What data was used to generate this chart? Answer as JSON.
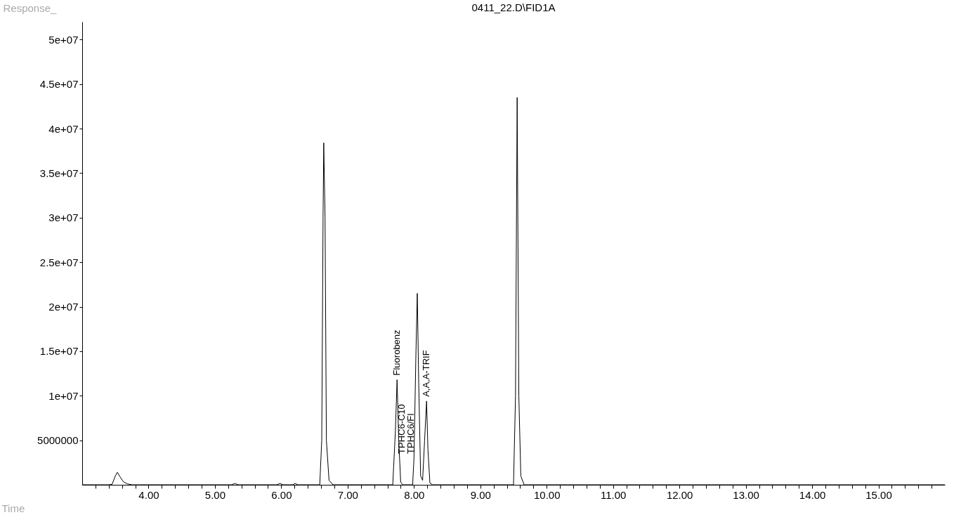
{
  "chart_data": {
    "type": "line",
    "title": "0411_22.D\\FID1A",
    "xlabel": "Time",
    "ylabel": "Response_",
    "x": [
      3.0,
      3.4,
      3.45,
      3.5,
      3.53,
      3.57,
      3.62,
      3.68,
      3.75,
      5.25,
      5.3,
      5.35,
      5.93,
      5.98,
      6.03,
      6.17,
      6.21,
      6.25,
      6.58,
      6.61,
      6.63,
      6.64,
      6.66,
      6.68,
      6.72,
      6.78,
      7.68,
      7.72,
      7.745,
      7.77,
      7.8,
      7.83,
      7.98,
      8.0,
      8.03,
      8.05,
      8.07,
      8.1,
      8.13,
      8.16,
      8.19,
      8.21,
      8.24,
      8.28,
      9.5,
      9.53,
      9.555,
      9.58,
      9.61,
      9.66,
      16.0
    ],
    "series": [
      {
        "color": "#000000",
        "values": [
          0,
          0,
          50000,
          1000000,
          1400000,
          900000,
          350000,
          100000,
          0,
          0,
          150000,
          0,
          0,
          150000,
          0,
          0,
          150000,
          0,
          0,
          5000000,
          30000000,
          38400000,
          30000000,
          5000000,
          500000,
          0,
          0,
          6000000,
          11800000,
          5000000,
          300000,
          0,
          0,
          3000000,
          15000000,
          21500000,
          12000000,
          1000000,
          500000,
          5000000,
          9400000,
          4000000,
          200000,
          0,
          0,
          10000000,
          43500000,
          10000000,
          1000000,
          0,
          0
        ]
      }
    ],
    "xlim": [
      3.0,
      16.0
    ],
    "ylim": [
      0,
      52000000
    ],
    "xticks": [
      {
        "value": 3.2,
        "label": null
      },
      {
        "value": 3.4,
        "label": null
      },
      {
        "value": 3.6,
        "label": null
      },
      {
        "value": 3.8,
        "label": null
      },
      {
        "value": 4,
        "label": "4.00"
      },
      {
        "value": 4.2,
        "label": null
      },
      {
        "value": 4.4,
        "label": null
      },
      {
        "value": 4.6,
        "label": null
      },
      {
        "value": 4.8,
        "label": null
      },
      {
        "value": 5,
        "label": "5.00"
      },
      {
        "value": 5.2,
        "label": null
      },
      {
        "value": 5.4,
        "label": null
      },
      {
        "value": 5.6,
        "label": null
      },
      {
        "value": 5.8,
        "label": null
      },
      {
        "value": 6,
        "label": "6.00"
      },
      {
        "value": 6.2,
        "label": null
      },
      {
        "value": 6.4,
        "label": null
      },
      {
        "value": 6.6,
        "label": null
      },
      {
        "value": 6.8,
        "label": null
      },
      {
        "value": 7,
        "label": "7.00"
      },
      {
        "value": 7.2,
        "label": null
      },
      {
        "value": 7.4,
        "label": null
      },
      {
        "value": 7.6,
        "label": null
      },
      {
        "value": 7.8,
        "label": null
      },
      {
        "value": 8,
        "label": "8.00"
      },
      {
        "value": 8.2,
        "label": null
      },
      {
        "value": 8.4,
        "label": null
      },
      {
        "value": 8.6,
        "label": null
      },
      {
        "value": 8.8,
        "label": null
      },
      {
        "value": 9,
        "label": "9.00"
      },
      {
        "value": 9.2,
        "label": null
      },
      {
        "value": 9.4,
        "label": null
      },
      {
        "value": 9.6,
        "label": null
      },
      {
        "value": 9.8,
        "label": null
      },
      {
        "value": 10,
        "label": "10.00"
      },
      {
        "value": 10.2,
        "label": null
      },
      {
        "value": 10.4,
        "label": null
      },
      {
        "value": 10.6,
        "label": null
      },
      {
        "value": 10.8,
        "label": null
      },
      {
        "value": 11,
        "label": "11.00"
      },
      {
        "value": 11.2,
        "label": null
      },
      {
        "value": 11.4,
        "label": null
      },
      {
        "value": 11.6,
        "label": null
      },
      {
        "value": 11.8,
        "label": null
      },
      {
        "value": 12,
        "label": "12.00"
      },
      {
        "value": 12.2,
        "label": null
      },
      {
        "value": 12.4,
        "label": null
      },
      {
        "value": 12.6,
        "label": null
      },
      {
        "value": 12.8,
        "label": null
      },
      {
        "value": 13,
        "label": "13.00"
      },
      {
        "value": 13.2,
        "label": null
      },
      {
        "value": 13.4,
        "label": null
      },
      {
        "value": 13.6,
        "label": null
      },
      {
        "value": 13.8,
        "label": null
      },
      {
        "value": 14,
        "label": "14.00"
      },
      {
        "value": 14.2,
        "label": null
      },
      {
        "value": 14.4,
        "label": null
      },
      {
        "value": 14.6,
        "label": null
      },
      {
        "value": 14.8,
        "label": null
      },
      {
        "value": 15,
        "label": "15.00"
      },
      {
        "value": 15.2,
        "label": null
      },
      {
        "value": 15.4,
        "label": null
      },
      {
        "value": 15.6,
        "label": null
      },
      {
        "value": 15.8,
        "label": null
      }
    ],
    "yticks": [
      5000000,
      {
        "value": 10000000,
        "label": "1e+07"
      },
      {
        "value": 15000000,
        "label": "1.5e+07"
      },
      {
        "value": 20000000,
        "label": "2e+07"
      },
      {
        "value": 25000000,
        "label": "2.5e+07"
      },
      {
        "value": 30000000,
        "label": "3e+07"
      },
      {
        "value": 35000000,
        "label": "3.5e+07"
      },
      {
        "value": 40000000,
        "label": "4e+07"
      },
      {
        "value": 45000000,
        "label": "4.5e+07"
      },
      {
        "value": 50000000,
        "label": "5e+07"
      }
    ],
    "annotations": [
      {
        "text": "Fluorobenz",
        "x": 7.745,
        "y": 11800000
      },
      {
        "text": "TPHC6-C10",
        "x": 8.0,
        "y": 3000000
      },
      {
        "text": "TPHC6/FI",
        "x": 8.0,
        "y": 3000000
      },
      {
        "text": "A,A,A-TRIF",
        "x": 8.19,
        "y": 9400000
      }
    ],
    "grid": false,
    "legend": false
  }
}
